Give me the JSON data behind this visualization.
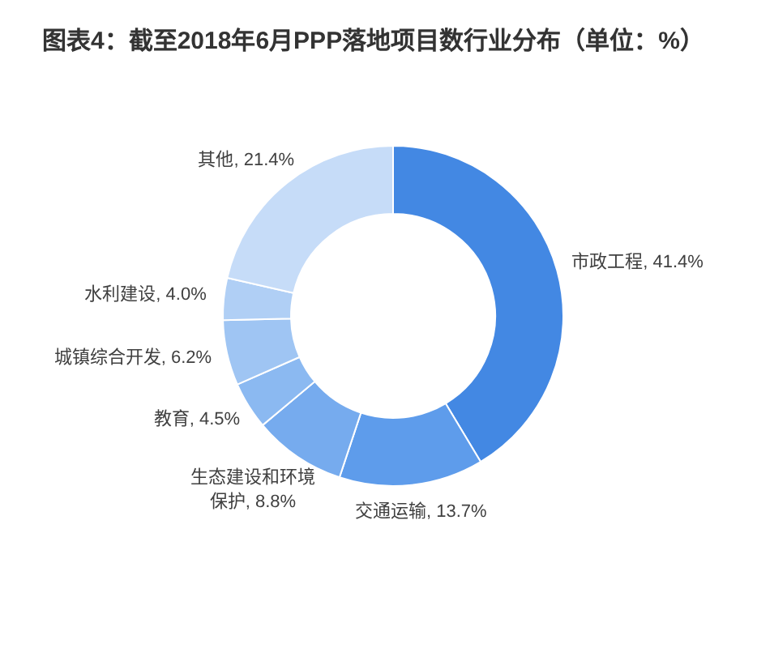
{
  "chart_data": {
    "type": "donut",
    "title": "图表4：截至2018年6月PPP落地项目数行业分布（单位：%）",
    "categories": [
      "市政工程",
      "交通运输",
      "生态建设和环境保护",
      "教育",
      "城镇综合开发",
      "水利建设",
      "其他"
    ],
    "values": [
      41.4,
      13.7,
      8.8,
      4.5,
      6.2,
      4.0,
      21.4
    ],
    "value_labels": [
      "41.4%",
      "13.7%",
      "8.8%",
      "4.5%",
      "6.2%",
      "4.0%",
      "21.4%"
    ],
    "colors": [
      "#4388e3",
      "#5e9ceb",
      "#76abee",
      "#8bb9f1",
      "#9fc5f3",
      "#b0cff5",
      "#c6dcf8"
    ]
  }
}
